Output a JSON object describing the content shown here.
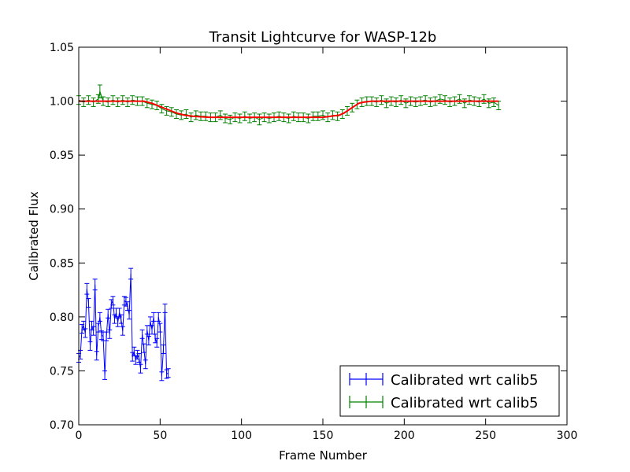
{
  "chart_data": {
    "type": "line",
    "title": "Transit Lightcurve for WASP-12b",
    "xlabel": "Frame Number",
    "ylabel": "Calibrated Flux",
    "xlim": [
      0,
      300
    ],
    "ylim": [
      0.7,
      1.05
    ],
    "x_ticks": [
      "0",
      "50",
      "100",
      "150",
      "200",
      "250",
      "300"
    ],
    "y_ticks": [
      "0.70",
      "0.75",
      "0.80",
      "0.85",
      "0.90",
      "0.95",
      "1.00",
      "1.05"
    ],
    "grid": false,
    "legend_position": "lower-right",
    "colors": {
      "series1": "#0000ff",
      "series2": "#008000",
      "model": "#ff0000"
    },
    "series": [
      {
        "name": "Calibrated wrt calib5",
        "color": "#0000ff",
        "error_bars": true,
        "x": [
          0,
          1,
          2,
          3,
          4,
          5,
          6,
          7,
          8,
          9,
          10,
          11,
          12,
          13,
          14,
          15,
          16,
          17,
          18,
          19,
          20,
          21,
          22,
          23,
          24,
          25,
          26,
          27,
          28,
          29,
          30,
          31,
          32,
          33,
          34,
          35,
          36,
          37,
          38,
          39,
          40,
          41,
          42,
          43,
          44,
          45,
          46,
          47,
          48,
          49,
          50,
          51,
          52,
          53,
          54,
          55
        ],
        "y": [
          0.762,
          0.765,
          0.789,
          0.792,
          0.785,
          0.826,
          0.813,
          0.773,
          0.792,
          0.787,
          0.83,
          0.764,
          0.79,
          0.8,
          0.783,
          0.782,
          0.746,
          0.782,
          0.803,
          0.784,
          0.812,
          0.815,
          0.798,
          0.804,
          0.795,
          0.804,
          0.798,
          0.787,
          0.815,
          0.814,
          0.81,
          0.802,
          0.84,
          0.763,
          0.768,
          0.76,
          0.765,
          0.762,
          0.752,
          0.784,
          0.771,
          0.756,
          0.788,
          0.778,
          0.796,
          0.788,
          0.8,
          0.78,
          0.776,
          0.8,
          0.79,
          0.745,
          0.77,
          0.808,
          0.747,
          0.748
        ],
        "yerr": [
          0.004,
          0.004,
          0.004,
          0.004,
          0.004,
          0.005,
          0.004,
          0.004,
          0.004,
          0.004,
          0.005,
          0.004,
          0.004,
          0.004,
          0.004,
          0.004,
          0.004,
          0.004,
          0.004,
          0.004,
          0.004,
          0.004,
          0.004,
          0.004,
          0.004,
          0.004,
          0.004,
          0.004,
          0.004,
          0.004,
          0.004,
          0.004,
          0.005,
          0.004,
          0.004,
          0.004,
          0.004,
          0.004,
          0.004,
          0.004,
          0.004,
          0.004,
          0.004,
          0.004,
          0.004,
          0.004,
          0.004,
          0.004,
          0.004,
          0.004,
          0.004,
          0.004,
          0.004,
          0.004,
          0.004,
          0.004
        ]
      },
      {
        "name": "Calibrated wrt calib5",
        "color": "#008000",
        "error_bars": true,
        "x": [
          0,
          3,
          6,
          9,
          12,
          13,
          15,
          18,
          21,
          24,
          27,
          30,
          33,
          36,
          39,
          42,
          45,
          48,
          51,
          54,
          57,
          60,
          63,
          66,
          69,
          72,
          75,
          78,
          81,
          84,
          87,
          90,
          93,
          96,
          99,
          102,
          105,
          108,
          111,
          114,
          117,
          120,
          123,
          126,
          129,
          132,
          135,
          138,
          141,
          144,
          147,
          150,
          153,
          156,
          159,
          162,
          165,
          168,
          171,
          174,
          177,
          180,
          183,
          186,
          189,
          192,
          195,
          198,
          201,
          204,
          207,
          210,
          213,
          216,
          219,
          222,
          225,
          228,
          231,
          234,
          237,
          240,
          243,
          246,
          249,
          252,
          255,
          258
        ],
        "y": [
          1.001,
          0.999,
          1.001,
          0.999,
          1.002,
          1.009,
          1.0,
          0.999,
          1.001,
          0.999,
          1.001,
          0.999,
          1.001,
          1.0,
          1.0,
          0.998,
          0.997,
          0.996,
          0.993,
          0.991,
          0.99,
          0.988,
          0.987,
          0.988,
          0.985,
          0.987,
          0.986,
          0.986,
          0.985,
          0.985,
          0.987,
          0.984,
          0.983,
          0.985,
          0.984,
          0.986,
          0.984,
          0.985,
          0.983,
          0.985,
          0.984,
          0.985,
          0.986,
          0.985,
          0.984,
          0.986,
          0.985,
          0.985,
          0.984,
          0.986,
          0.986,
          0.987,
          0.985,
          0.987,
          0.986,
          0.988,
          0.991,
          0.994,
          0.997,
          0.999,
          1.0,
          1.0,
          0.999,
          1.001,
          0.998,
          1.0,
          0.999,
          1.001,
          0.998,
          1.0,
          0.999,
          1.0,
          1.001,
          0.999,
          1.0,
          1.002,
          1.001,
          0.999,
          1.0,
          1.002,
          0.998,
          1.001,
          1.0,
          0.999,
          1.002,
          0.998,
          0.999,
          0.996
        ],
        "yerr": [
          0.004,
          0.004,
          0.004,
          0.004,
          0.004,
          0.006,
          0.004,
          0.004,
          0.004,
          0.004,
          0.004,
          0.004,
          0.004,
          0.004,
          0.004,
          0.004,
          0.004,
          0.004,
          0.004,
          0.004,
          0.004,
          0.004,
          0.004,
          0.004,
          0.004,
          0.004,
          0.004,
          0.004,
          0.004,
          0.004,
          0.004,
          0.004,
          0.004,
          0.004,
          0.004,
          0.004,
          0.004,
          0.004,
          0.005,
          0.004,
          0.004,
          0.004,
          0.004,
          0.004,
          0.004,
          0.004,
          0.004,
          0.004,
          0.004,
          0.004,
          0.004,
          0.004,
          0.004,
          0.004,
          0.004,
          0.004,
          0.004,
          0.004,
          0.004,
          0.004,
          0.004,
          0.004,
          0.004,
          0.004,
          0.004,
          0.004,
          0.004,
          0.004,
          0.004,
          0.004,
          0.004,
          0.004,
          0.004,
          0.004,
          0.004,
          0.004,
          0.004,
          0.004,
          0.004,
          0.004,
          0.004,
          0.004,
          0.004,
          0.004,
          0.004,
          0.004,
          0.004,
          0.004
        ]
      },
      {
        "color": "#ff0000",
        "error_bars": false,
        "x": [
          0,
          20,
          40,
          45,
          50,
          55,
          60,
          65,
          70,
          80,
          90,
          100,
          120,
          140,
          150,
          155,
          160,
          163,
          166,
          169,
          172,
          175,
          180,
          200,
          220,
          240,
          258
        ],
        "y": [
          1.0,
          1.0,
          1.0,
          0.998,
          0.995,
          0.992,
          0.989,
          0.987,
          0.986,
          0.985,
          0.985,
          0.985,
          0.985,
          0.985,
          0.985,
          0.986,
          0.987,
          0.989,
          0.992,
          0.995,
          0.998,
          0.999,
          1.0,
          1.0,
          1.0,
          1.0,
          1.0
        ]
      }
    ]
  }
}
